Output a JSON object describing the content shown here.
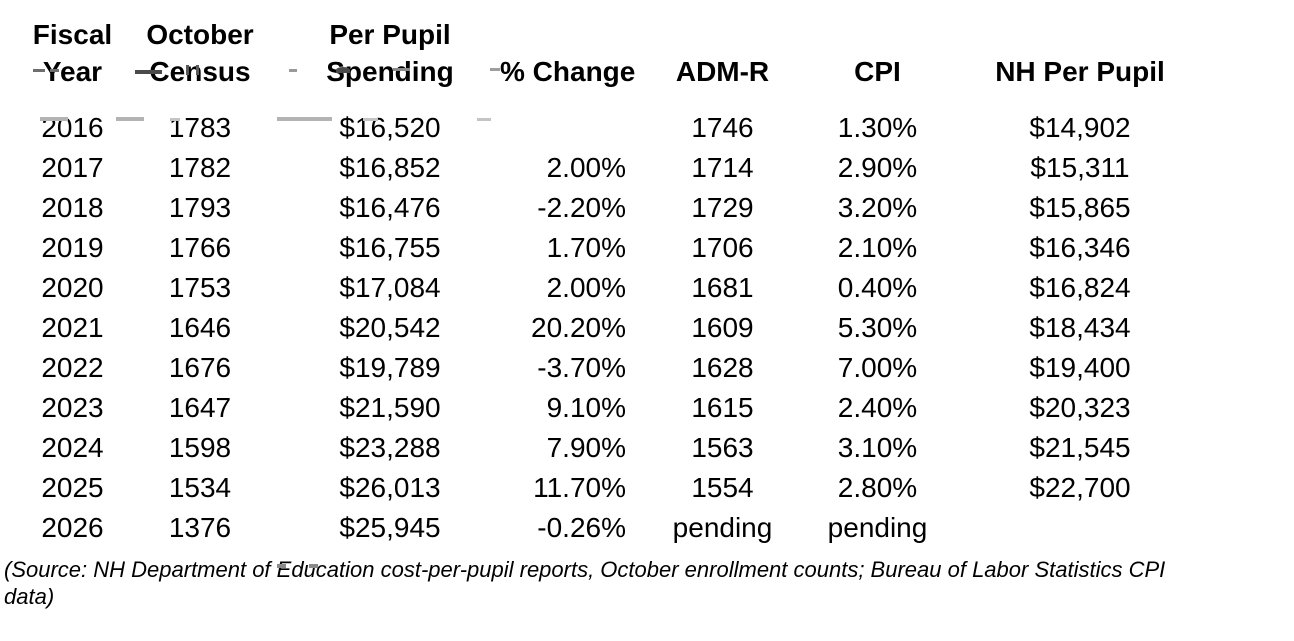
{
  "page": {
    "background_color": "#ffffff",
    "text_color": "#000000"
  },
  "header": {
    "column_lines": [
      {
        "line1": "Fiscal",
        "line2": "Year"
      },
      {
        "line1": "October",
        "line2": "Census"
      },
      {
        "line1": "Per Pupil",
        "line2": "Spending"
      },
      {
        "line1": "",
        "line2": "% Change"
      },
      {
        "line1": "",
        "line2": "ADM-R"
      },
      {
        "line1": "",
        "line2": "CPI"
      },
      {
        "line1": "",
        "line2": "NH Per Pupil"
      }
    ]
  },
  "chart_data": {
    "type": "table",
    "columns": [
      "Fiscal Year",
      "October Census",
      "Per Pupil Spending",
      "% Change",
      "ADM-R",
      "CPI",
      "NH Per Pupil"
    ],
    "rows": [
      [
        "2016",
        "1783",
        "$16,520",
        "",
        "1746",
        "1.30%",
        "$14,902"
      ],
      [
        "2017",
        "1782",
        "$16,852",
        "2.00%",
        "1714",
        "2.90%",
        "$15,311"
      ],
      [
        "2018",
        "1793",
        "$16,476",
        "-2.20%",
        "1729",
        "3.20%",
        "$15,865"
      ],
      [
        "2019",
        "1766",
        "$16,755",
        "1.70%",
        "1706",
        "2.10%",
        "$16,346"
      ],
      [
        "2020",
        "1753",
        "$17,084",
        "2.00%",
        "1681",
        "0.40%",
        "$16,824"
      ],
      [
        "2021",
        "1646",
        "$20,542",
        "20.20%",
        "1609",
        "5.30%",
        "$18,434"
      ],
      [
        "2022",
        "1676",
        "$19,789",
        "-3.70%",
        "1628",
        "7.00%",
        "$19,400"
      ],
      [
        "2023",
        "1647",
        "$21,590",
        "9.10%",
        "1615",
        "2.40%",
        "$20,323"
      ],
      [
        "2024",
        "1598",
        "$23,288",
        "7.90%",
        "1563",
        "3.10%",
        "$21,545"
      ],
      [
        "2025",
        "1534",
        "$26,013",
        "11.70%",
        "1554",
        "2.80%",
        "$22,700"
      ],
      [
        "2026",
        "1376",
        "$25,945",
        "-0.26%",
        "pending",
        "pending",
        ""
      ]
    ]
  },
  "source_note": {
    "full_text": "(Source: NH Department of Education cost-per-pupil reports, October enrollment counts; Bureau of Labor Statistics CPI data)",
    "line1": "(Source: NH Department of Education cost-per-pupil reports, October enrollment counts; Bureau of Labor Statistics CPI",
    "line2": "data)"
  }
}
